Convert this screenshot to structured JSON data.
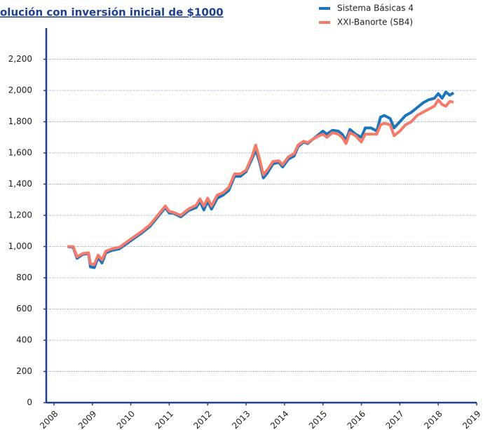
{
  "chart_data": {
    "type": "line",
    "title": "olución con inversión inicial de $1000",
    "x": [
      2008.35,
      2008.5,
      2008.6,
      2008.75,
      2008.9,
      2008.95,
      2009.05,
      2009.15,
      2009.25,
      2009.35,
      2009.5,
      2009.7,
      2009.9,
      2010.1,
      2010.3,
      2010.5,
      2010.7,
      2010.9,
      2011.0,
      2011.1,
      2011.3,
      2011.5,
      2011.7,
      2011.8,
      2011.9,
      2012.0,
      2012.1,
      2012.25,
      2012.4,
      2012.55,
      2012.7,
      2012.85,
      2013.0,
      2013.15,
      2013.25,
      2013.35,
      2013.45,
      2013.55,
      2013.7,
      2013.85,
      2013.95,
      2014.1,
      2014.25,
      2014.35,
      2014.5,
      2014.6,
      2014.75,
      2014.9,
      2015.0,
      2015.1,
      2015.25,
      2015.4,
      2015.5,
      2015.6,
      2015.7,
      2015.85,
      2016.0,
      2016.1,
      2016.25,
      2016.4,
      2016.5,
      2016.6,
      2016.75,
      2016.85,
      2017.0,
      2017.15,
      2017.3,
      2017.45,
      2017.6,
      2017.75,
      2017.9,
      2018.0,
      2018.1,
      2018.2,
      2018.3,
      2018.4
    ],
    "series": [
      {
        "name": "Sistema Básicas 4",
        "color": "#1b75bb",
        "values": [
          1000,
          995,
          925,
          950,
          955,
          870,
          865,
          930,
          895,
          960,
          975,
          985,
          1020,
          1055,
          1090,
          1130,
          1190,
          1250,
          1215,
          1215,
          1190,
          1230,
          1250,
          1290,
          1235,
          1290,
          1240,
          1310,
          1330,
          1360,
          1450,
          1450,
          1480,
          1560,
          1620,
          1540,
          1440,
          1470,
          1530,
          1540,
          1510,
          1560,
          1580,
          1640,
          1670,
          1660,
          1690,
          1720,
          1740,
          1720,
          1745,
          1740,
          1720,
          1680,
          1750,
          1720,
          1700,
          1760,
          1760,
          1740,
          1830,
          1840,
          1820,
          1760,
          1800,
          1840,
          1860,
          1890,
          1920,
          1940,
          1950,
          1980,
          1950,
          1990,
          1970,
          1985
        ]
      },
      {
        "name": "XXI-Banorte (SB4)",
        "color": "#f47b6a",
        "values": [
          1000,
          1000,
          935,
          955,
          960,
          890,
          885,
          945,
          915,
          970,
          985,
          995,
          1030,
          1065,
          1100,
          1140,
          1200,
          1260,
          1225,
          1220,
          1200,
          1240,
          1265,
          1305,
          1260,
          1310,
          1260,
          1330,
          1345,
          1380,
          1465,
          1465,
          1490,
          1575,
          1650,
          1560,
          1460,
          1490,
          1545,
          1550,
          1525,
          1575,
          1595,
          1650,
          1675,
          1665,
          1690,
          1710,
          1720,
          1700,
          1730,
          1720,
          1700,
          1660,
          1730,
          1710,
          1670,
          1720,
          1720,
          1720,
          1780,
          1790,
          1780,
          1710,
          1740,
          1780,
          1800,
          1840,
          1860,
          1880,
          1900,
          1940,
          1910,
          1900,
          1930,
          1925
        ]
      }
    ],
    "xlim": [
      2007.8,
      2019
    ],
    "xticks": [
      2008,
      2009,
      2010,
      2011,
      2012,
      2013,
      2014,
      2015,
      2016,
      2017,
      2018,
      2019
    ],
    "ylim": [
      0,
      2400
    ],
    "yticks": [
      0,
      200,
      400,
      600,
      800,
      {
        "value": 1000,
        "label": "1,000"
      },
      {
        "value": 1200,
        "label": "1,200"
      },
      {
        "value": 1400,
        "label": "1,400"
      },
      {
        "value": 1600,
        "label": "1,600"
      },
      {
        "value": 1800,
        "label": "1,800"
      },
      {
        "value": 2000,
        "label": "2,000"
      },
      {
        "value": 2200,
        "label": "2,200"
      }
    ],
    "grid": true,
    "legend": "top-right"
  }
}
